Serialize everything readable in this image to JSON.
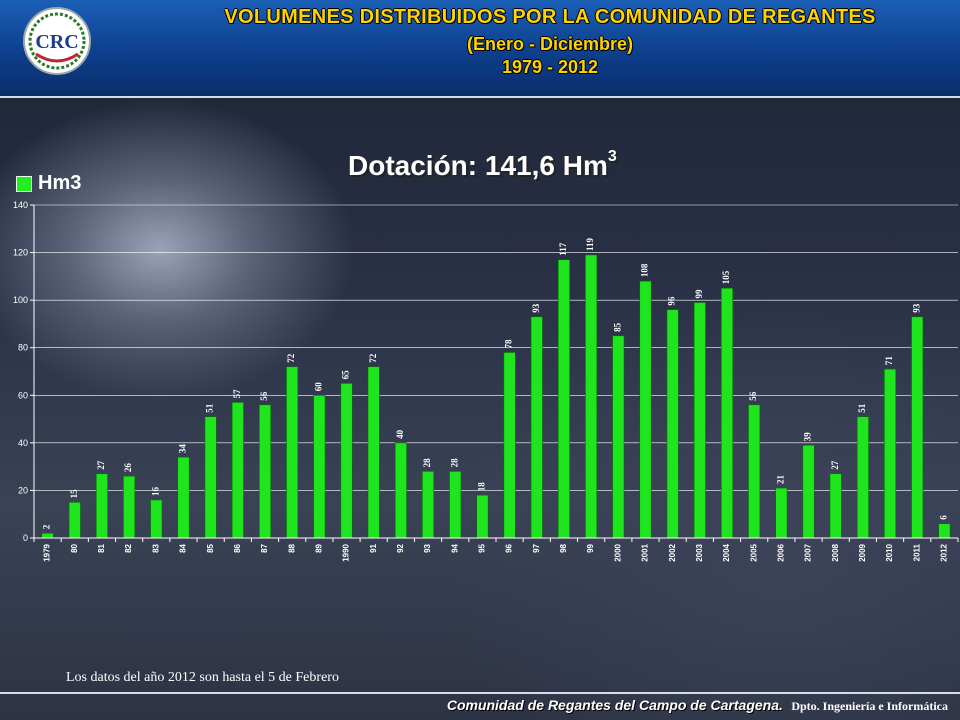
{
  "header": {
    "title": "VOLUMENES DISTRIBUIDOS POR LA COMUNIDAD DE REGANTES",
    "subtitle": "(Enero - Diciembre)",
    "period": "1979 - 2012"
  },
  "logo": {
    "icon": "crc-logo-seal",
    "letters": "CRC"
  },
  "dotacion": {
    "label": "Dotación: 141,6 Hm",
    "superscript": "3"
  },
  "colors": {
    "bar": "#1ee51e",
    "header_text": "#ffd200",
    "header_bg": "#0d3f8c"
  },
  "chart_data": {
    "type": "bar",
    "legend": {
      "label": "Hm3",
      "position": "top-left"
    },
    "ylim": [
      0,
      140
    ],
    "yticks": [
      0,
      20,
      40,
      60,
      80,
      100,
      120,
      140
    ],
    "grid": true,
    "categories": [
      "1979",
      "80",
      "81",
      "82",
      "83",
      "84",
      "85",
      "86",
      "87",
      "88",
      "89",
      "1990",
      "91",
      "92",
      "93",
      "94",
      "95",
      "96",
      "97",
      "98",
      "99",
      "2000",
      "2001",
      "2002",
      "2003",
      "2004",
      "2005",
      "2006",
      "2007",
      "2008",
      "2009",
      "2010",
      "2011",
      "2012"
    ],
    "values": [
      2,
      15,
      27,
      26,
      16,
      34,
      51,
      57,
      56,
      72,
      60,
      65,
      72,
      40,
      28,
      28,
      18,
      78,
      93,
      117,
      119,
      85,
      108,
      96,
      99,
      105,
      56,
      21,
      39,
      27,
      51,
      71,
      93,
      6
    ]
  },
  "footnote": "Los datos del año 2012 son hasta el 5 de Febrero",
  "footer": {
    "org": "Comunidad de Regantes del Campo de Cartagena.",
    "dept": "Dpto. Ingeniería e Informática"
  }
}
